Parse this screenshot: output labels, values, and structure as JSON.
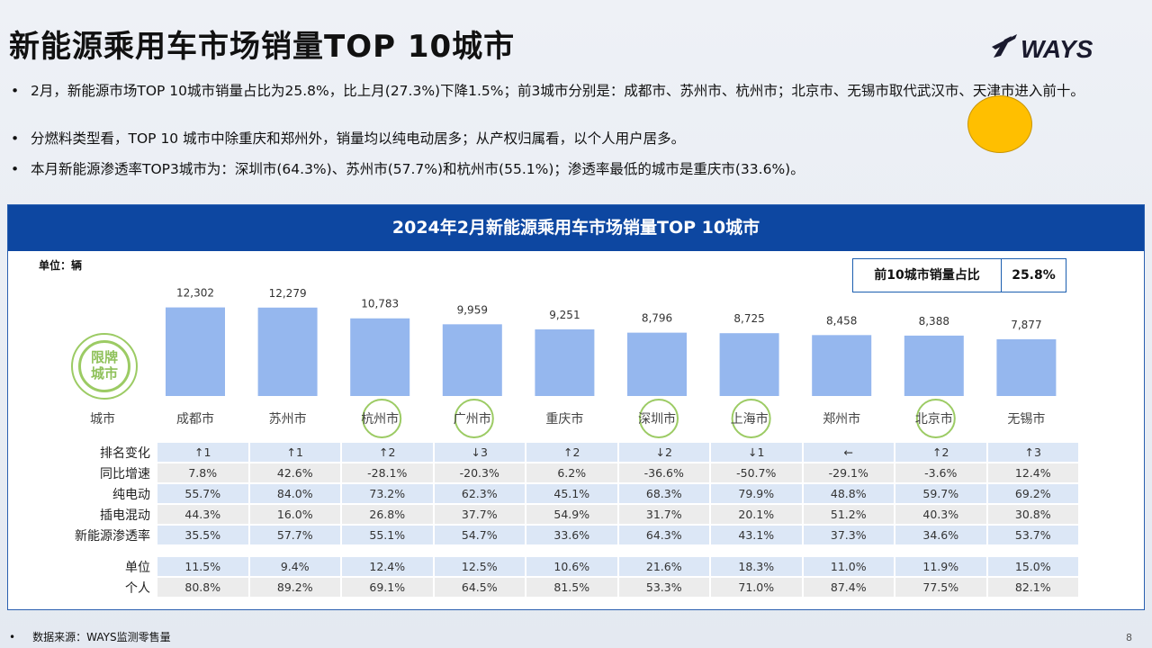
{
  "page": {
    "title": "新能源乘用车市场销量TOP 10城市",
    "logo_text": "WAYS",
    "bullets": [
      "2月，新能源市场TOP 10城市销量占比为25.8%，比上月(27.3%)下降1.5%；前3城市分别是：成都市、苏州市、杭州市；北京市、无锡市取代武汉市、天津市进入前十。",
      "分燃料类型看，TOP 10 城市中除重庆和郑州外，销量均以纯电动居多；从产权归属看，以个人用户居多。",
      "本月新能源渗透率TOP3城市为：深圳市(64.3%)、苏州市(57.7%)和杭州市(55.1%)；渗透率最低的城市是重庆市(33.6%)。"
    ],
    "footer": "数据来源：WAYS监测零售量",
    "page_number": "8"
  },
  "panel": {
    "title": "2024年2月新能源乘用车市场销量TOP  10城市",
    "unit_label": "单位：辆",
    "kpi_label": "前10城市销量占比",
    "kpi_value": "25.8%",
    "badge_text": "限牌\n城市",
    "x_axis_label": "城市"
  },
  "colors": {
    "bar": "#95b7ee",
    "header": "#0d47a1",
    "ring": "#9ccb64",
    "dot": "#ffbf00"
  },
  "chart_data": {
    "type": "bar",
    "categories": [
      "成都市",
      "苏州市",
      "杭州市",
      "广州市",
      "重庆市",
      "深圳市",
      "上海市",
      "郑州市",
      "北京市",
      "无锡市"
    ],
    "values": [
      12302,
      12279,
      10783,
      9959,
      9251,
      8796,
      8725,
      8458,
      8388,
      7877
    ],
    "value_labels": [
      "12,302",
      "12,279",
      "10,783",
      "9,959",
      "9,251",
      "8,796",
      "8,725",
      "8,458",
      "8,388",
      "7,877"
    ],
    "restricted_plate": [
      false,
      false,
      true,
      true,
      false,
      true,
      true,
      false,
      true,
      false
    ],
    "ylim": [
      0,
      14000
    ]
  },
  "table": {
    "groups": [
      [
        {
          "label": "排名变化",
          "style": "blue",
          "values": [
            "↑1",
            "↑1",
            "↑2",
            "↓3",
            "↑2",
            "↓2",
            "↓1",
            "←",
            "↑2",
            "↑3"
          ]
        },
        {
          "label": "同比增速",
          "style": "gray",
          "values": [
            "7.8%",
            "42.6%",
            "-28.1%",
            "-20.3%",
            "6.2%",
            "-36.6%",
            "-50.7%",
            "-29.1%",
            "-3.6%",
            "12.4%"
          ]
        },
        {
          "label": "纯电动",
          "style": "blue",
          "values": [
            "55.7%",
            "84.0%",
            "73.2%",
            "62.3%",
            "45.1%",
            "68.3%",
            "79.9%",
            "48.8%",
            "59.7%",
            "69.2%"
          ]
        },
        {
          "label": "插电混动",
          "style": "gray",
          "values": [
            "44.3%",
            "16.0%",
            "26.8%",
            "37.7%",
            "54.9%",
            "31.7%",
            "20.1%",
            "51.2%",
            "40.3%",
            "30.8%"
          ]
        },
        {
          "label": "新能源渗透率",
          "style": "blue",
          "values": [
            "35.5%",
            "57.7%",
            "55.1%",
            "54.7%",
            "33.6%",
            "64.3%",
            "43.1%",
            "37.3%",
            "34.6%",
            "53.7%"
          ]
        }
      ],
      [
        {
          "label": "单位",
          "style": "blue",
          "values": [
            "11.5%",
            "9.4%",
            "12.4%",
            "12.5%",
            "10.6%",
            "21.6%",
            "18.3%",
            "11.0%",
            "11.9%",
            "15.0%"
          ]
        },
        {
          "label": "个人",
          "style": "gray",
          "values": [
            "80.8%",
            "89.2%",
            "69.1%",
            "64.5%",
            "81.5%",
            "53.3%",
            "71.0%",
            "87.4%",
            "77.5%",
            "82.1%"
          ]
        }
      ]
    ]
  }
}
